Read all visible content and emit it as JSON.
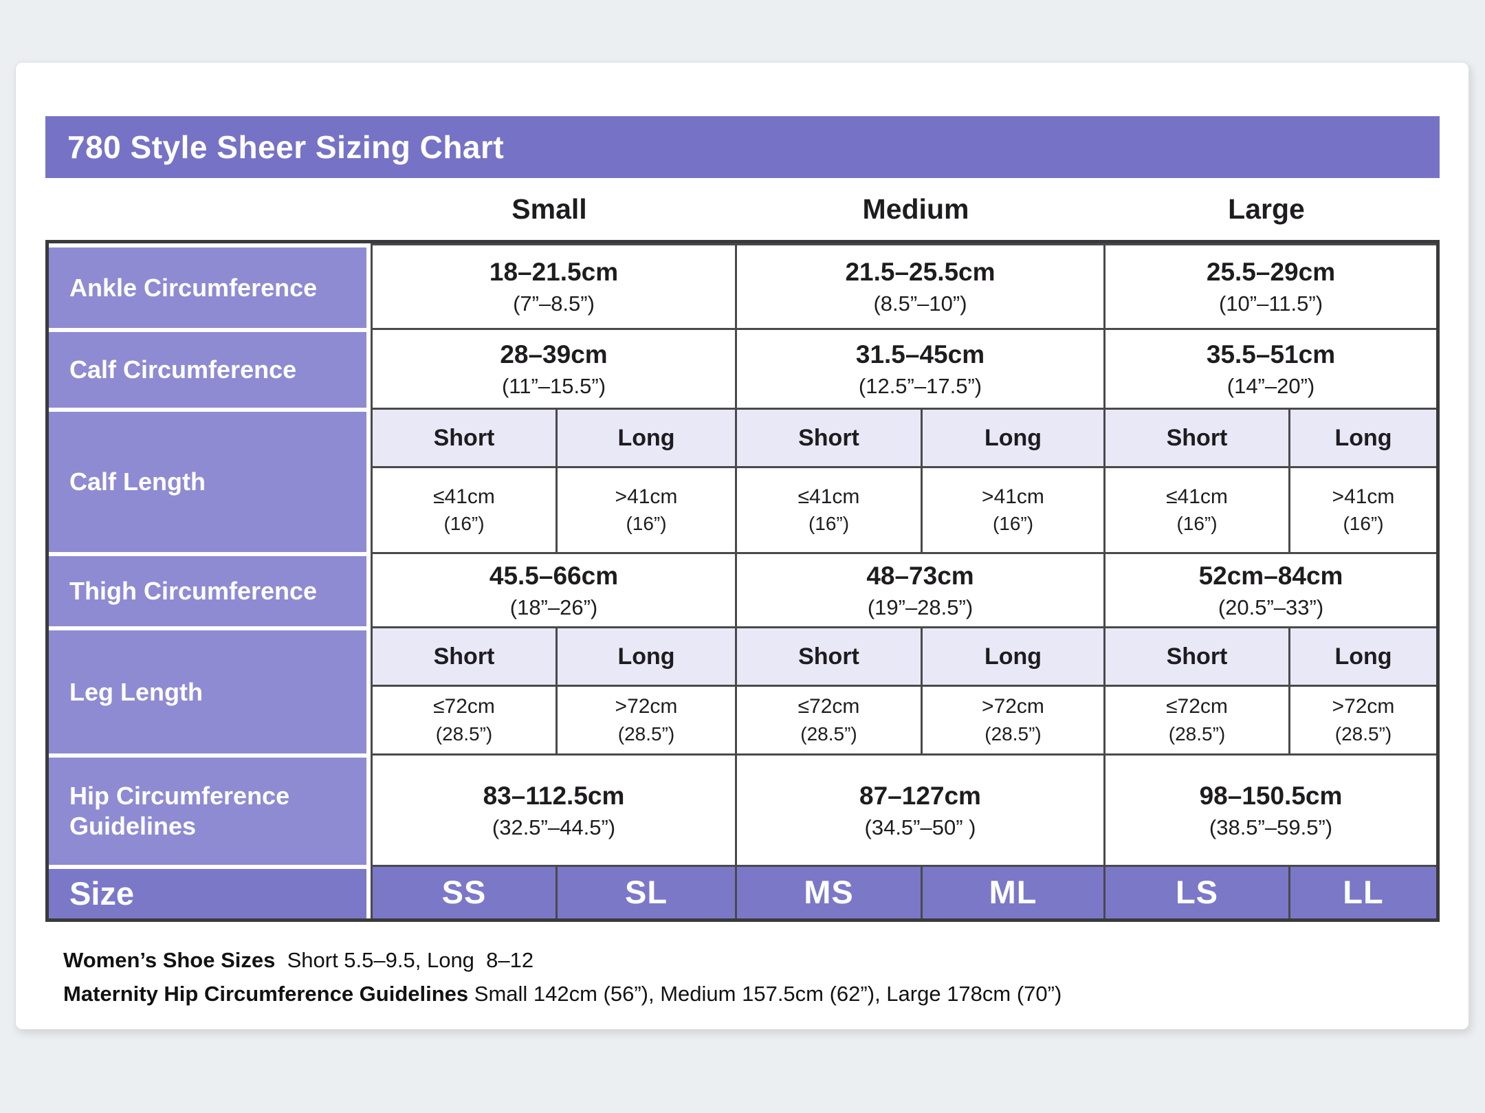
{
  "title": "780 Style Sheer Sizing Chart",
  "size_groups": [
    "Small",
    "Medium",
    "Large"
  ],
  "rows": {
    "ankle": {
      "label": "Ankle Circumference",
      "values": [
        {
          "cm": "18–21.5cm",
          "in": "(7”–8.5”)"
        },
        {
          "cm": "21.5–25.5cm",
          "in": "(8.5”–10”)"
        },
        {
          "cm": "25.5–29cm",
          "in": "(10”–11.5”)"
        }
      ]
    },
    "calf_circumference": {
      "label": "Calf Circumference",
      "values": [
        {
          "cm": "28–39cm",
          "in": "(11”–15.5”)"
        },
        {
          "cm": "31.5–45cm",
          "in": "(12.5”–17.5”)"
        },
        {
          "cm": "35.5–51cm",
          "in": "(14”–20”)"
        }
      ]
    },
    "calf_length": {
      "label": "Calf Length",
      "subheaders": [
        "Short",
        "Long",
        "Short",
        "Long",
        "Short",
        "Long"
      ],
      "values": [
        {
          "cm": "≤41cm",
          "in": "(16”)"
        },
        {
          "cm": ">41cm",
          "in": "(16”)"
        },
        {
          "cm": "≤41cm",
          "in": "(16”)"
        },
        {
          "cm": ">41cm",
          "in": "(16”)"
        },
        {
          "cm": "≤41cm",
          "in": "(16”)"
        },
        {
          "cm": ">41cm",
          "in": "(16”)"
        }
      ]
    },
    "thigh": {
      "label": "Thigh Circumference",
      "values": [
        {
          "cm": "45.5–66cm",
          "in": "(18”–26”)"
        },
        {
          "cm": "48–73cm",
          "in": "(19”–28.5”)"
        },
        {
          "cm": "52cm–84cm",
          "in": "(20.5”–33”)"
        }
      ]
    },
    "leg_length": {
      "label": "Leg Length",
      "subheaders": [
        "Short",
        "Long",
        "Short",
        "Long",
        "Short",
        "Long"
      ],
      "values": [
        {
          "cm": "≤72cm",
          "in": "(28.5”)"
        },
        {
          "cm": ">72cm",
          "in": "(28.5”)"
        },
        {
          "cm": "≤72cm",
          "in": "(28.5”)"
        },
        {
          "cm": ">72cm",
          "in": "(28.5”)"
        },
        {
          "cm": "≤72cm",
          "in": "(28.5”)"
        },
        {
          "cm": ">72cm",
          "in": "(28.5”)"
        }
      ]
    },
    "hip": {
      "label": "Hip Circumference Guidelines",
      "values": [
        {
          "cm": "83–112.5cm",
          "in": "(32.5”–44.5”)"
        },
        {
          "cm": "87–127cm",
          "in": "(34.5”–50” )"
        },
        {
          "cm": "98–150.5cm",
          "in": "(38.5”–59.5”)"
        }
      ]
    },
    "size": {
      "label": "Size",
      "values": [
        "SS",
        "SL",
        "MS",
        "ML",
        "LS",
        "LL"
      ]
    }
  },
  "footnotes": {
    "shoe_sizes": {
      "label": "Women’s Shoe Sizes",
      "text": "  Short 5.5–9.5, Long  8–12"
    },
    "maternity": {
      "label": "Maternity Hip Circumference Guidelines",
      "text": " Small 142cm (56”), Medium 157.5cm (62”), Large 178cm (70”)"
    }
  },
  "colors": {
    "page_background": "#eceff1",
    "title_bar_purple": "#7673c6",
    "row_label_purple": "#8e8bd3",
    "size_row_purple": "#7b78c8",
    "subheader_lavender": "#e9e8f6",
    "grid_border": "#49494b",
    "outer_border": "#3a3a3c"
  }
}
